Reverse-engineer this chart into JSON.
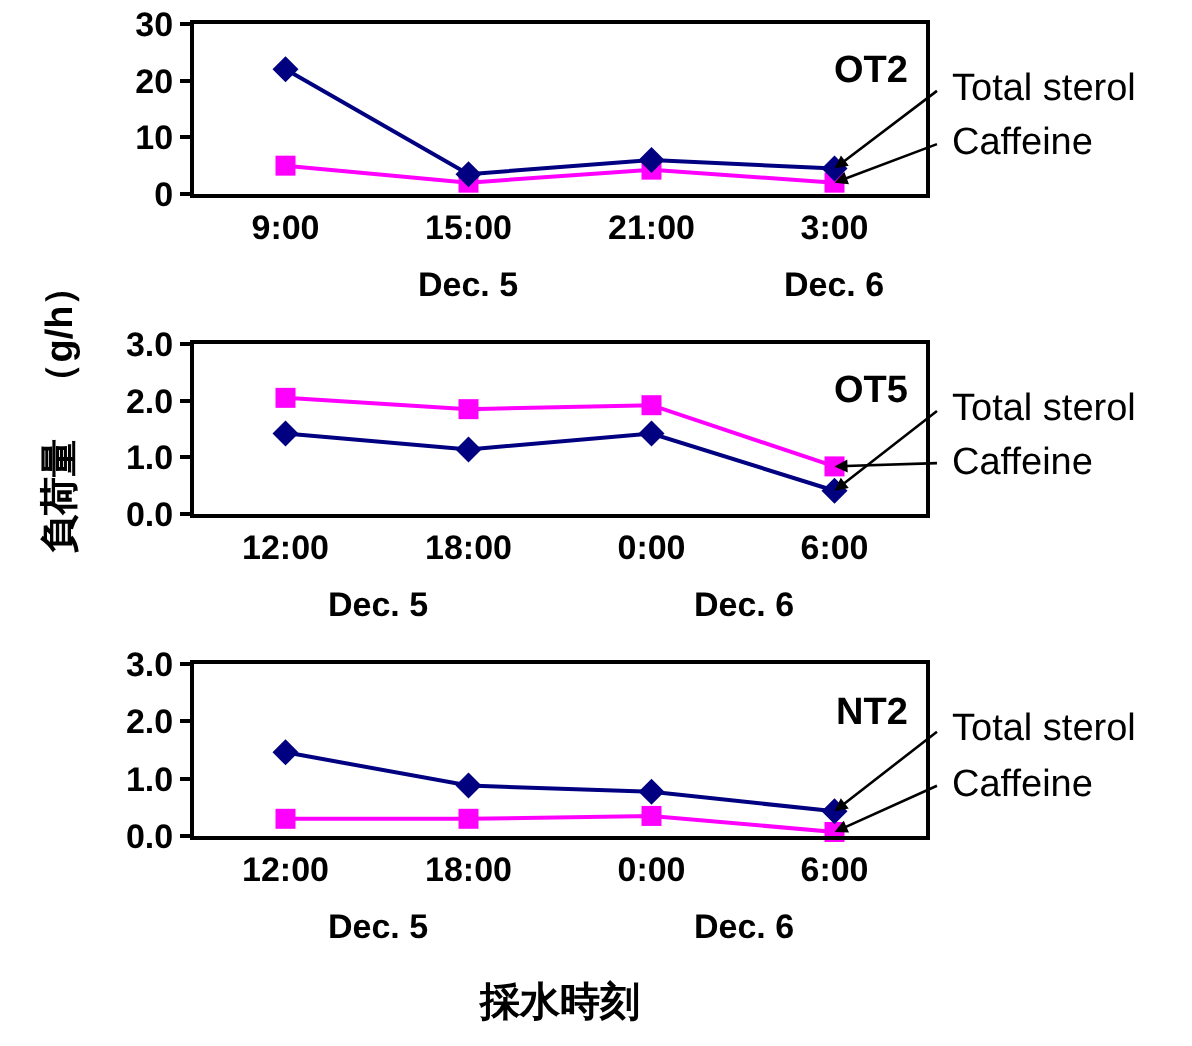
{
  "chart_data": [
    {
      "type": "line",
      "title": "OT2",
      "categories": [
        "9:00",
        "15:00",
        "21:00",
        "3:00"
      ],
      "ylim": [
        0,
        30
      ],
      "yticks": [
        0,
        10,
        20,
        30
      ],
      "grid": false,
      "legend": false,
      "annotations": [
        "Dec. 5",
        "Dec. 6"
      ],
      "series": [
        {
          "name": "Total sterol",
          "color": "#000080",
          "marker": "diamond",
          "values": [
            22,
            3.5,
            6,
            4.5
          ]
        },
        {
          "name": "Caffeine",
          "color": "#ff00ff",
          "marker": "square",
          "values": [
            5,
            2,
            4.3,
            2
          ]
        }
      ]
    },
    {
      "type": "line",
      "title": "OT5",
      "ylabel": "負荷量　（g/h）",
      "categories": [
        "12:00",
        "18:00",
        "0:00",
        "6:00"
      ],
      "ylim": [
        0,
        3
      ],
      "yticks": [
        {
          "value": 0,
          "label": "0.0"
        },
        {
          "value": 1,
          "label": "1.0"
        },
        {
          "value": 2,
          "label": "2.0"
        },
        {
          "value": 3,
          "label": "3.0"
        }
      ],
      "grid": false,
      "legend": false,
      "annotations": [
        "Dec. 5",
        "Dec. 6"
      ],
      "series": [
        {
          "name": "Total sterol",
          "color": "#000080",
          "marker": "diamond",
          "values": [
            1.42,
            1.14,
            1.42,
            0.41
          ]
        },
        {
          "name": "Caffeine",
          "color": "#ff00ff",
          "marker": "square",
          "values": [
            2.05,
            1.85,
            1.92,
            0.84
          ]
        }
      ]
    },
    {
      "type": "line",
      "title": "NT2",
      "xlabel": "採水時刻",
      "categories": [
        "12:00",
        "18:00",
        "0:00",
        "6:00"
      ],
      "ylim": [
        0,
        3
      ],
      "yticks": [
        {
          "value": 0,
          "label": "0.0"
        },
        {
          "value": 1,
          "label": "1.0"
        },
        {
          "value": 2,
          "label": "2.0"
        },
        {
          "value": 3,
          "label": "3.0"
        }
      ],
      "grid": false,
      "legend": false,
      "annotations": [
        "Dec. 5",
        "Dec. 6"
      ],
      "series": [
        {
          "name": "Total sterol",
          "color": "#000080",
          "marker": "diamond",
          "values": [
            1.46,
            0.88,
            0.77,
            0.43
          ]
        },
        {
          "name": "Caffeine",
          "color": "#ff00ff",
          "marker": "square",
          "values": [
            0.3,
            0.3,
            0.35,
            0.07
          ]
        }
      ]
    }
  ]
}
